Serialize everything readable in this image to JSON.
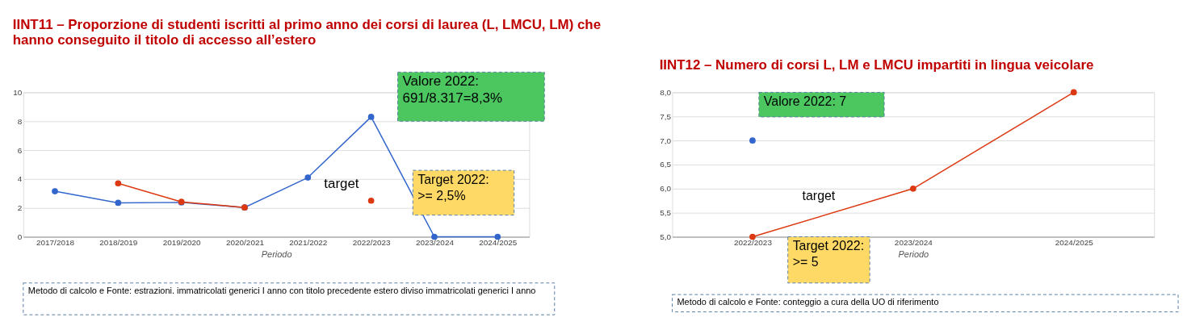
{
  "chart_data": [
    {
      "type": "line",
      "title": "IINT11 – Proporzione di studenti iscritti al primo anno dei corsi di laurea (L, LMCU, LM) che hanno conseguito il titolo di accesso all’estero",
      "xlabel": "Periodo",
      "categories": [
        "2017/2018",
        "2018/2019",
        "2019/2020",
        "2020/2021",
        "2021/2022",
        "2022/2023",
        "2023/2024",
        "2024/2025"
      ],
      "series": [
        {
          "color": "#3366cc",
          "values": [
            3.15,
            2.35,
            2.38,
            2.03,
            4.1,
            8.3,
            0,
            0
          ]
        },
        {
          "color": "#dc3912",
          "values": [
            null,
            3.7,
            2.42,
            2.03,
            null,
            2.5,
            null,
            null
          ]
        }
      ],
      "ylim": [
        0,
        10
      ],
      "yticks": [
        0,
        2,
        4,
        6,
        8,
        10
      ],
      "grid": "y",
      "marker": "circle",
      "legend": false,
      "annotations": [
        "Valore 2022:\n691/8.317=8,3%",
        "target",
        "Target 2022:\n>= 2,5%",
        "Metodo di calcolo e Fonte: estrazioni. immatricolati generici I anno con titolo precedente estero diviso immatricolati generici I anno"
      ]
    },
    {
      "type": "line",
      "title": "IINT12 – Numero di corsi L, LM e LMCU impartiti in lingua veicolare",
      "xlabel": "Periodo",
      "categories": [
        "2022/2023",
        "2023/2024",
        "2024/2025"
      ],
      "series": [
        {
          "color": "#3366cc",
          "values": [
            7,
            null,
            null
          ]
        },
        {
          "color": "#dc3912",
          "values": [
            5,
            6,
            8
          ]
        }
      ],
      "ylim": [
        5,
        8
      ],
      "yticks": [
        {
          "value": 5,
          "label": "5,0"
        },
        {
          "value": 5.5,
          "label": "5,5"
        },
        {
          "value": 6,
          "label": "6,0"
        },
        {
          "value": 6.5,
          "label": "6,5"
        },
        {
          "value": 7,
          "label": "7,0"
        },
        {
          "value": 7.5,
          "label": "7,5"
        },
        {
          "value": 8,
          "label": "8,0"
        }
      ],
      "grid": "y",
      "marker": "circle",
      "legend": false,
      "annotations": [
        "Valore 2022: 7",
        "target",
        "Target 2022:\n>= 5",
        "Metodo di calcolo e Fonte: conteggio a cura della UO di riferimento"
      ]
    }
  ]
}
